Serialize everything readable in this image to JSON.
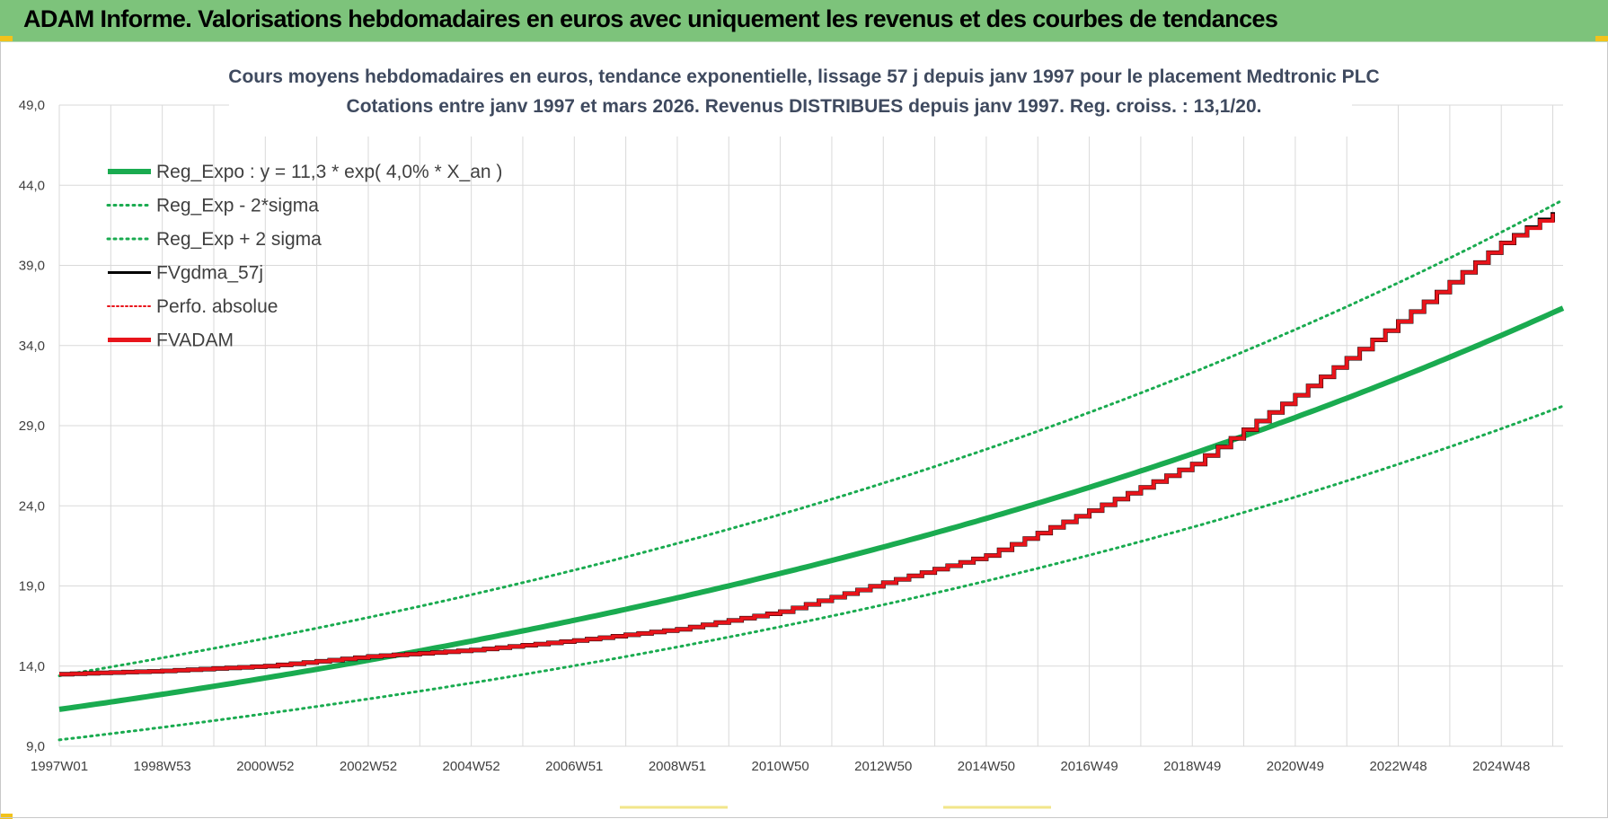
{
  "header": {
    "title": "ADAM Informe. Valorisations hebdomadaires en euros avec uniquement les revenus et des courbes de tendances"
  },
  "colors": {
    "header_bg": "#7dc37b",
    "reg_expo": "#1aab50",
    "bands": "#1aab50",
    "fvadam": "#e8141b",
    "fvgdma": "#000000",
    "perfo": "#e8141b",
    "grid": "#d9d9d9"
  },
  "chart_data": {
    "type": "line",
    "title": "Cours moyens hebdomadaires en euros, tendance exponentielle, lissage 57 j depuis janv 1997 pour le placement Medtronic PLC",
    "subtitle": "Cotations entre janv 1997 et mars 2026. Revenus DISTRIBUES depuis janv 1997. Reg. croiss. : 13,1/20.",
    "xlabel": "",
    "ylabel": "",
    "x_range": [
      1997.0,
      2026.2
    ],
    "ylim": [
      9.0,
      49.0
    ],
    "y_ticks": [
      "9,0",
      "14,0",
      "19,0",
      "24,0",
      "29,0",
      "34,0",
      "39,0",
      "44,0",
      "49,0"
    ],
    "x_tick_labels": [
      "1997W01",
      "1998W53",
      "2000W52",
      "2002W52",
      "2004W52",
      "2006W51",
      "2008W51",
      "2010W50",
      "2012W50",
      "2014W50",
      "2016W49",
      "2018W49",
      "2020W49",
      "2022W48",
      "2024W48"
    ],
    "x_tick_years": [
      1997.0,
      1999.0,
      2001.0,
      2003.0,
      2005.0,
      2007.0,
      2009.0,
      2011.0,
      2013.0,
      2015.0,
      2017.0,
      2019.0,
      2021.0,
      2023.0,
      2025.0
    ],
    "grid": true,
    "legend_position": "top-left",
    "series": [
      {
        "name": "Reg_Expo : y = 11,3 * exp( 4,0% *  X_an )",
        "style": "solid-thick",
        "x": [
          1997,
          1999,
          2001,
          2003,
          2005,
          2007,
          2009,
          2011,
          2013,
          2015,
          2017,
          2019,
          2021,
          2023,
          2025,
          2026.2
        ],
        "values": [
          11.3,
          12.3,
          13.3,
          14.4,
          15.6,
          16.9,
          18.3,
          19.8,
          21.4,
          23.2,
          25.1,
          27.2,
          29.5,
          31.9,
          34.6,
          36.3
        ]
      },
      {
        "name": "Reg_Exp - 2*sigma",
        "style": "dotted",
        "x": [
          1997,
          1999,
          2001,
          2003,
          2005,
          2007,
          2009,
          2011,
          2013,
          2015,
          2017,
          2019,
          2021,
          2023,
          2025,
          2026.2
        ],
        "values": [
          9.4,
          10.2,
          11.0,
          11.9,
          12.9,
          14.0,
          15.2,
          16.4,
          17.8,
          19.3,
          20.9,
          22.6,
          24.5,
          26.5,
          28.7,
          30.2
        ]
      },
      {
        "name": "Reg_Exp + 2 sigma",
        "style": "dotted",
        "x": [
          1997,
          1999,
          2001,
          2003,
          2005,
          2007,
          2009,
          2011,
          2013,
          2015,
          2017,
          2019,
          2021,
          2023,
          2025,
          2026.2
        ],
        "values": [
          13.4,
          14.5,
          15.7,
          17.0,
          18.5,
          20.0,
          21.7,
          23.5,
          25.5,
          27.6,
          29.9,
          32.4,
          35.1,
          38.0,
          41.1,
          43.4
        ]
      },
      {
        "name": "FVgdma_57j",
        "style": "solid",
        "x": [
          1997,
          1999,
          2001,
          2003,
          2005,
          2007,
          2009,
          2011,
          2013,
          2015,
          2017,
          2019,
          2021,
          2023,
          2025,
          2026.2
        ],
        "values": [
          13.5,
          13.7,
          14.0,
          14.6,
          15.0,
          15.6,
          16.3,
          17.4,
          19.2,
          20.9,
          23.7,
          26.6,
          30.9,
          35.5,
          40.4,
          42.7
        ]
      },
      {
        "name": "Perfo. absolue",
        "style": "dotted",
        "x": [],
        "values": []
      },
      {
        "name": "FVADAM",
        "style": "solid-thick-steps",
        "x": [
          1997,
          1999,
          2001,
          2003,
          2005,
          2007,
          2009,
          2011,
          2013,
          2015,
          2017,
          2019,
          2021,
          2023,
          2025,
          2026.2
        ],
        "values": [
          13.5,
          13.7,
          14.0,
          14.6,
          15.0,
          15.6,
          16.3,
          17.4,
          19.2,
          20.9,
          23.7,
          26.6,
          30.9,
          35.5,
          40.4,
          42.6
        ]
      }
    ]
  }
}
